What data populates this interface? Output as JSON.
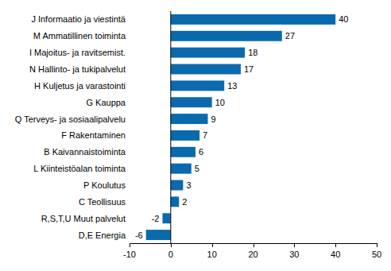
{
  "chart_data": {
    "type": "bar",
    "orientation": "horizontal",
    "categories": [
      "J Informaatio ja viestintä",
      "M Ammatillinen toiminta",
      "I Majoitus- ja ravitsemist.",
      "N Hallinto- ja tukipalvelut",
      "H Kuljetus ja varastointi",
      "G Kauppa",
      "Q Terveys- ja sosiaalipalvelu",
      "F Rakentaminen",
      "B Kaivannaistoiminta",
      "L Kiinteistöalan toiminta",
      "P Koulutus",
      "C Teollisuus",
      "R,S,T,U Muut palvelut",
      "D,E Energia"
    ],
    "values": [
      40,
      27,
      18,
      17,
      13,
      10,
      9,
      7,
      6,
      5,
      3,
      2,
      -2,
      -6
    ],
    "color": "#0a6aad",
    "xlim": [
      -10,
      50
    ],
    "xticks": [
      -10,
      0,
      10,
      20,
      30,
      40,
      50
    ],
    "grid": false,
    "data_labels": true
  }
}
